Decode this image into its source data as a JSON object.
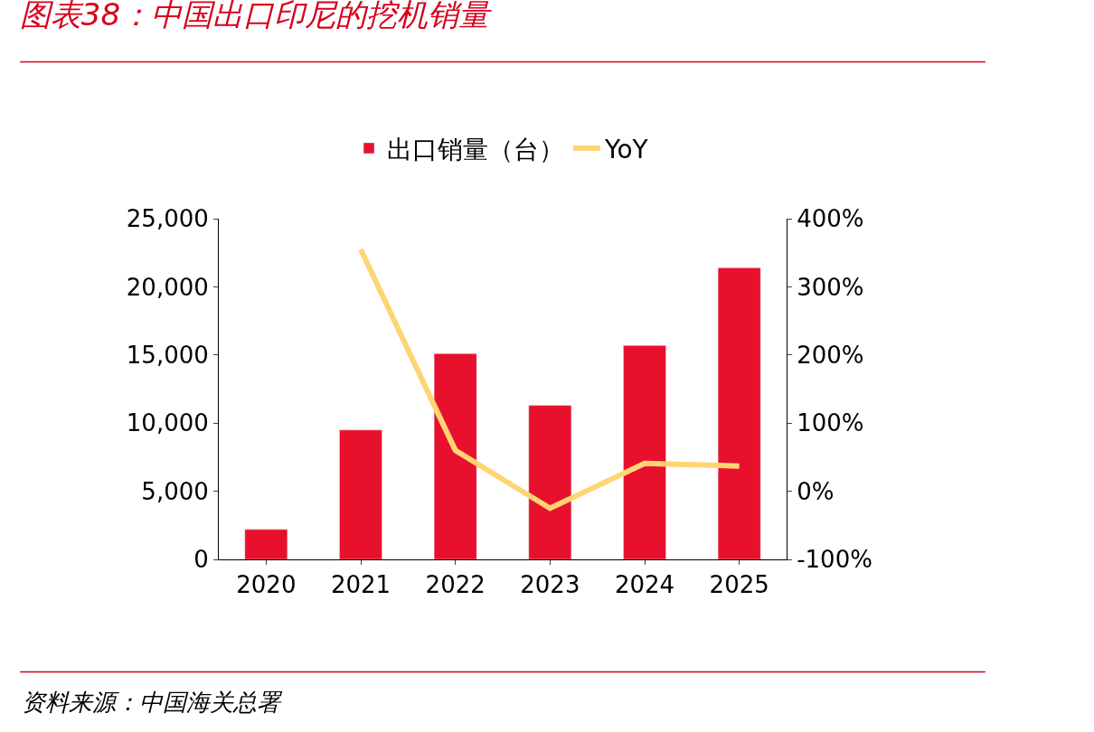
{
  "chart_data": {
    "type": "bar",
    "title": "图表38：中国出口印尼的挖机销量",
    "categories": [
      "2020",
      "2021",
      "2022",
      "2023",
      "2024",
      "2025"
    ],
    "series": [
      {
        "name": "出口销量（台）",
        "color": "#e8112d",
        "values": [
          2200,
          9500,
          15100,
          11300,
          15700,
          21400
        ]
      },
      {
        "name": "YoY",
        "color": "#ffd573",
        "type": "line",
        "axis": "y2",
        "values": [
          null,
          355,
          60,
          -25,
          41,
          37
        ]
      }
    ],
    "ylim": [
      0,
      25000
    ],
    "yticks": [
      {
        "value": 0,
        "label": "0"
      },
      {
        "value": 5000,
        "label": "5,000"
      },
      {
        "value": 10000,
        "label": "10,000"
      },
      {
        "value": 15000,
        "label": "15,000"
      },
      {
        "value": 20000,
        "label": "20,000"
      },
      {
        "value": 25000,
        "label": "25,000"
      }
    ],
    "y2lim": [
      -100,
      400
    ],
    "y2ticks": [
      {
        "value": -100,
        "label": "-100%"
      },
      {
        "value": 0,
        "label": "0%"
      },
      {
        "value": 100,
        "label": "100%"
      },
      {
        "value": 200,
        "label": "200%"
      },
      {
        "value": 300,
        "label": "300%"
      },
      {
        "value": 400,
        "label": "400%"
      }
    ],
    "legend": "top",
    "marker": "none",
    "line_style": "solid",
    "annotations": [
      "资料来源：中国海关总署"
    ]
  }
}
